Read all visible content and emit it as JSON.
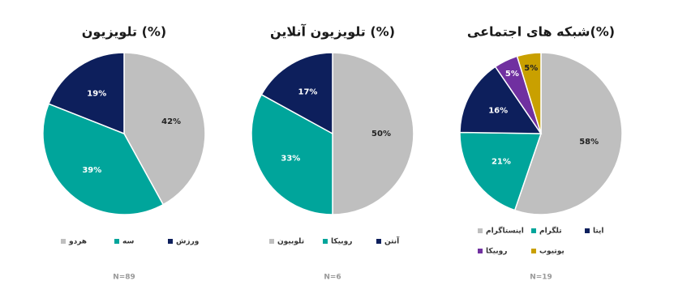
{
  "chart_data": [
    {
      "type": "pie",
      "title": "تلویزیون (%)",
      "categories": [
        "هردو",
        "سه",
        "ورزش"
      ],
      "values": [
        42,
        39,
        19
      ],
      "value_labels": [
        "42%",
        "39%",
        "19%"
      ],
      "colors": [
        "#bfbfbf",
        "#00a59b",
        "#0d1f5c"
      ],
      "note": "N=89"
    },
    {
      "type": "pie",
      "title": "تلویزیون آنلاین (%)",
      "categories": [
        "تلوبیون",
        "روبیکا",
        "آنتن"
      ],
      "values": [
        50,
        33,
        17
      ],
      "value_labels": [
        "50%",
        "33%",
        "17%"
      ],
      "colors": [
        "#bfbfbf",
        "#00a59b",
        "#0d1f5c"
      ],
      "note": "N=6"
    },
    {
      "type": "pie",
      "title": "شبکه های اجتماعی(%)",
      "categories": [
        "اینستاگرام",
        "تلگرام",
        "ایتا",
        "روبیکا",
        "یوتیوب"
      ],
      "values": [
        58,
        21,
        16,
        5,
        5
      ],
      "value_labels": [
        "58%",
        "21%",
        "16%",
        "5%",
        "5%"
      ],
      "colors": [
        "#bfbfbf",
        "#00a59b",
        "#0d1f5c",
        "#7030a0",
        "#c9a000"
      ],
      "note": "N=19"
    }
  ]
}
